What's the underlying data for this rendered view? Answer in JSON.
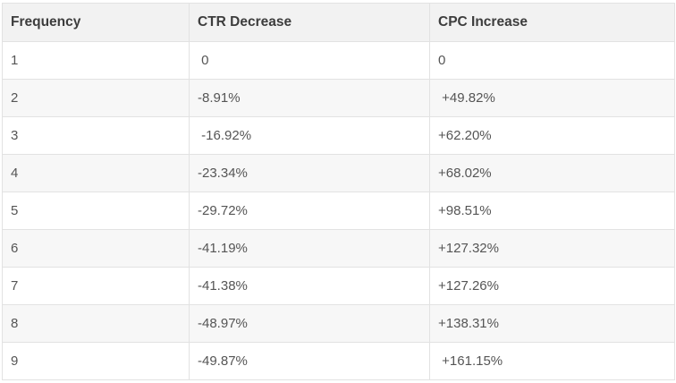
{
  "table": {
    "headers": [
      "Frequency",
      "CTR Decrease",
      "CPC Increase"
    ],
    "rows": [
      [
        "1",
        " 0",
        "0"
      ],
      [
        "2",
        "-8.91%",
        " +49.82%"
      ],
      [
        "3",
        " -16.92%",
        "+62.20%"
      ],
      [
        "4",
        "-23.34%",
        "+68.02%"
      ],
      [
        "5",
        "-29.72%",
        "+98.51%"
      ],
      [
        "6",
        "-41.19%",
        "+127.32%"
      ],
      [
        "7",
        "-41.38%",
        "+127.26%"
      ],
      [
        "8",
        "-48.97%",
        "+138.31%"
      ],
      [
        "9",
        "-49.87%",
        " +161.15%"
      ]
    ]
  }
}
